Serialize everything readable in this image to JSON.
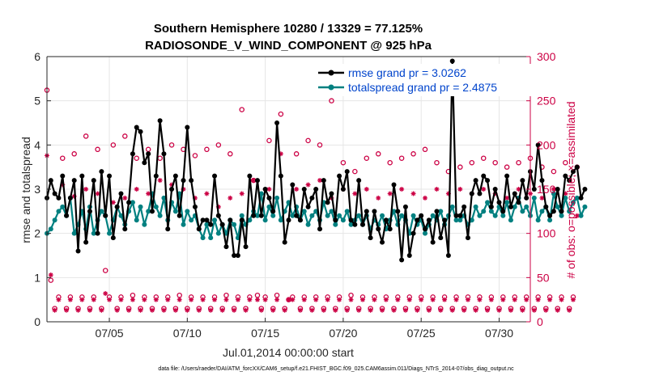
{
  "chart_data": {
    "type": "line",
    "title_line1": "Southern Hemisphere 10280 / 13329 = 77.125%",
    "title_line2": "RADIOSONDE_V_WIND_COMPONENT @ 925 hPa",
    "xlabel": "Jul.01,2014 00:00:00 start",
    "ylabel": "rmse and totalspread",
    "ylabel_right": "# of obs: o=possible; ×=assimilated",
    "footnote": "data file: /Users/raeder/DAI/ATM_forcXX/CAM6_setup/f.e21.FHIST_BGC.f09_025.CAM6assim.011/Diags_NTrS_2014-07/obs_diag_output.nc",
    "xlim": [
      1,
      32
    ],
    "ylim": [
      0,
      6
    ],
    "ylim_right": [
      0,
      300
    ],
    "x_ticks": [
      5,
      10,
      15,
      20,
      25,
      30
    ],
    "x_tick_labels": [
      "07/05",
      "07/10",
      "07/15",
      "07/20",
      "07/25",
      "07/30"
    ],
    "y_ticks": [
      0,
      1,
      2,
      3,
      4,
      5,
      6
    ],
    "y_tick_labels": [
      "0",
      "1",
      "2",
      "3",
      "4",
      "5",
      "6"
    ],
    "y_right_ticks": [
      0,
      50,
      100,
      150,
      200,
      250,
      300
    ],
    "y_right_tick_labels": [
      "0",
      "50",
      "100",
      "150",
      "200",
      "250",
      "300"
    ],
    "legend": [
      {
        "label": "rmse grand pr = 3.0262",
        "color": "#000000"
      },
      {
        "label": "totalspread grand pr = 2.4875",
        "color": "#008080"
      }
    ],
    "colors": {
      "rmse": "#000000",
      "spread": "#008080",
      "obs": "#cc0044",
      "grid": "#e6e6e6",
      "axis": "#262626"
    },
    "time_step_days": 0.25,
    "rmse": [
      2.8,
      3.2,
      2.9,
      2.8,
      3.3,
      2.4,
      2.8,
      3.2,
      1.6,
      3.3,
      1.8,
      2.5,
      3.2,
      2.0,
      3.4,
      2.4,
      3.3,
      1.9,
      2.6,
      2.9,
      2.1,
      2.7,
      3.8,
      4.4,
      4.3,
      3.6,
      3.8,
      2.5,
      3.3,
      4.55,
      3.8,
      2.1,
      3.0,
      3.3,
      2.4,
      3.2,
      4.4,
      3.2,
      2.6,
      2.1,
      2.3,
      2.3,
      2.2,
      3.3,
      2.4,
      2.2,
      1.7,
      2.3,
      1.5,
      1.5,
      2.3,
      1.7,
      3.3,
      2.4,
      3.2,
      2.4,
      3.0,
      2.8,
      2.5,
      4.5,
      3.3,
      1.8,
      2.3,
      3.1,
      2.4,
      2.3,
      3.0,
      2.6,
      2.8,
      3.0,
      2.1,
      3.2,
      2.7,
      2.9,
      2.3,
      3.3,
      3.0,
      3.4,
      2.3,
      2.2,
      3.2,
      2.2,
      2.5,
      1.9,
      2.5,
      2.1,
      1.8,
      2.3,
      2.1,
      3.1,
      2.5,
      1.4,
      2.6,
      1.5,
      2.0,
      2.3,
      2.4,
      2.1,
      2.3,
      1.8,
      2.5,
      1.9,
      2.3,
      1.5,
      5.9,
      2.4,
      2.4,
      2.6,
      1.9,
      2.9,
      3.2,
      2.9,
      3.3,
      3.2,
      2.6,
      3.0,
      2.7,
      2.5,
      3.3,
      2.6,
      2.9,
      2.7,
      3.2,
      2.8,
      3.4,
      3.0,
      4.0,
      3.2,
      2.6,
      2.4,
      2.5,
      3.0,
      2.5,
      3.3,
      3.2,
      3.4,
      3.5,
      2.8,
      3.0
    ],
    "spread": [
      2.0,
      2.1,
      2.3,
      2.5,
      2.6,
      2.4,
      2.8,
      2.0,
      2.2,
      2.5,
      2.1,
      2.6,
      2.0,
      2.3,
      2.5,
      2.4,
      2.0,
      2.3,
      2.6,
      2.4,
      2.2,
      2.5,
      2.7,
      2.3,
      2.6,
      2.2,
      2.5,
      2.9,
      2.6,
      2.4,
      2.8,
      2.3,
      2.7,
      2.5,
      2.9,
      2.2,
      2.5,
      2.3,
      2.4,
      2.1,
      1.9,
      2.2,
      1.9,
      2.3,
      2.0,
      2.2,
      2.0,
      2.3,
      2.2,
      1.9,
      2.4,
      2.2,
      2.3,
      2.5,
      2.4,
      2.9,
      2.3,
      2.6,
      2.4,
      2.8,
      2.3,
      2.5,
      2.7,
      2.4,
      2.6,
      2.3,
      2.5,
      2.2,
      2.4,
      2.5,
      2.3,
      2.7,
      2.4,
      2.5,
      2.2,
      2.4,
      2.3,
      2.5,
      2.2,
      2.3,
      2.4,
      2.2,
      2.4,
      2.1,
      2.3,
      2.2,
      2.4,
      2.1,
      2.3,
      2.5,
      2.2,
      2.4,
      2.3,
      2.0,
      2.4,
      2.2,
      2.3,
      2.0,
      2.2,
      2.4,
      2.3,
      2.5,
      2.2,
      2.4,
      2.6,
      2.3,
      2.3,
      2.4,
      2.2,
      2.3,
      2.6,
      2.4,
      2.5,
      2.7,
      2.5,
      2.4,
      2.6,
      2.4,
      2.7,
      2.3,
      2.6,
      2.8,
      2.5,
      2.6,
      2.4,
      2.8,
      2.3,
      2.5,
      2.6,
      2.3,
      2.9,
      2.6,
      2.4,
      2.8,
      2.5,
      2.7,
      2.8,
      2.4,
      2.6
    ],
    "obs_possible": [
      262,
      47,
      15,
      28,
      185,
      15,
      28,
      190,
      15,
      28,
      210,
      15,
      28,
      195,
      15,
      58,
      28,
      200,
      15,
      28,
      210,
      15,
      30,
      185,
      15,
      28,
      195,
      15,
      28,
      185,
      15,
      28,
      200,
      15,
      30,
      195,
      15,
      28,
      188,
      15,
      28,
      195,
      15,
      28,
      200,
      15,
      30,
      190,
      15,
      28,
      240,
      15,
      28,
      160,
      30,
      15,
      28,
      205,
      15,
      30,
      235,
      15,
      25,
      28,
      190,
      15,
      28,
      205,
      15,
      28,
      200,
      15,
      28,
      250,
      15,
      28,
      180,
      15,
      30,
      170,
      15,
      28,
      185,
      15,
      28,
      190,
      15,
      28,
      180,
      15,
      28,
      185,
      15,
      28,
      190,
      15,
      28,
      195,
      15,
      28,
      180,
      15,
      28,
      170,
      15,
      28,
      175,
      15,
      28,
      180,
      15,
      28,
      185,
      15,
      28,
      180,
      15,
      28,
      175,
      15,
      28,
      180,
      15,
      28,
      185,
      15,
      28,
      175,
      15,
      28,
      170,
      15,
      28,
      180,
      15,
      28,
      175
    ],
    "obs_assim": [
      188,
      53,
      13,
      25,
      155,
      13,
      25,
      142,
      13,
      25,
      150,
      13,
      25,
      145,
      13,
      32,
      25,
      135,
      13,
      25,
      140,
      13,
      25,
      150,
      13,
      25,
      145,
      13,
      25,
      160,
      13,
      25,
      155,
      13,
      25,
      150,
      13,
      25,
      140,
      13,
      25,
      145,
      13,
      25,
      130,
      13,
      25,
      140,
      13,
      25,
      145,
      13,
      25,
      160,
      25,
      13,
      25,
      150,
      13,
      25,
      190,
      13,
      25,
      25,
      150,
      13,
      25,
      155,
      13,
      25,
      160,
      13,
      25,
      140,
      13,
      25,
      150,
      13,
      25,
      145,
      13,
      25,
      150,
      13,
      25,
      140,
      13,
      25,
      145,
      13,
      25,
      150,
      13,
      25,
      145,
      13,
      25,
      140,
      13,
      25,
      150,
      13,
      25,
      145,
      13,
      25,
      150,
      13,
      25,
      145,
      13,
      25,
      150,
      13,
      25,
      145,
      13,
      25,
      140,
      13,
      25,
      150,
      13,
      25,
      145,
      13,
      25,
      140,
      13,
      25,
      150,
      13,
      25,
      145,
      13,
      25,
      120
    ]
  }
}
